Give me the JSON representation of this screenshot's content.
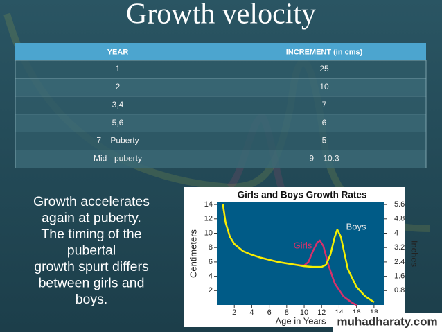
{
  "title": "Growth velocity",
  "table": {
    "header": [
      "YEAR",
      "INCREMENT (in cms)"
    ],
    "rows": [
      [
        "1",
        "25"
      ],
      [
        "2",
        "10"
      ],
      [
        "3,4",
        "7"
      ],
      [
        "5,6",
        "6"
      ],
      [
        "7 – Puberty",
        "5"
      ],
      [
        "Mid - puberty",
        "9 – 10.3"
      ]
    ]
  },
  "body": {
    "lines": [
      "Growth accelerates",
      "again at puberty.",
      "The timing of the",
      "pubertal",
      "growth spurt differs",
      "between girls and",
      "boys."
    ]
  },
  "chart": {
    "type": "line",
    "title": "Girls and Boys Growth Rates",
    "x_label": "Age in Years",
    "y_label": "Centimeters",
    "y2_label": "Inches",
    "xlim": [
      0,
      19.2
    ],
    "xticks": [
      2,
      4,
      6,
      8,
      10,
      12,
      14,
      16,
      18
    ],
    "ylim": [
      0,
      14.3
    ],
    "yticks": [
      2,
      4,
      6,
      8,
      10,
      12,
      14
    ],
    "y2lim": [
      0,
      5.72
    ],
    "y2ticks": [
      0.8,
      1.6,
      2.4,
      3.2,
      4.0,
      4.8,
      5.6
    ],
    "series": [
      {
        "name": "Girls",
        "color": "#d8306a",
        "x": [
          0.7,
          1,
          1.5,
          2,
          3,
          4,
          5,
          6,
          7,
          8,
          9,
          10,
          10.5,
          11,
          11.5,
          11.8,
          12.2,
          12.8,
          13.5,
          14.5,
          15.5,
          16
        ],
        "values": [
          14,
          11.5,
          9.5,
          8.5,
          7.5,
          7,
          6.6,
          6.3,
          6,
          5.8,
          5.6,
          5.5,
          6,
          7.5,
          8.7,
          9,
          8.2,
          5.5,
          3,
          1.2,
          0.3,
          0
        ]
      },
      {
        "name": "Boys",
        "color": "#f4f000",
        "x": [
          0.7,
          1,
          1.5,
          2,
          3,
          4,
          5,
          6,
          7,
          8,
          9,
          10,
          11,
          12,
          12.5,
          13,
          13.5,
          13.8,
          14.2,
          15,
          16,
          17,
          18
        ],
        "values": [
          14,
          11.5,
          9.5,
          8.5,
          7.5,
          7,
          6.6,
          6.3,
          6,
          5.8,
          5.6,
          5.4,
          5.3,
          5.3,
          5.6,
          7,
          9.5,
          10.5,
          9.5,
          5,
          2.5,
          1.2,
          0.4
        ]
      }
    ]
  },
  "watermark": "muhadharaty.com"
}
